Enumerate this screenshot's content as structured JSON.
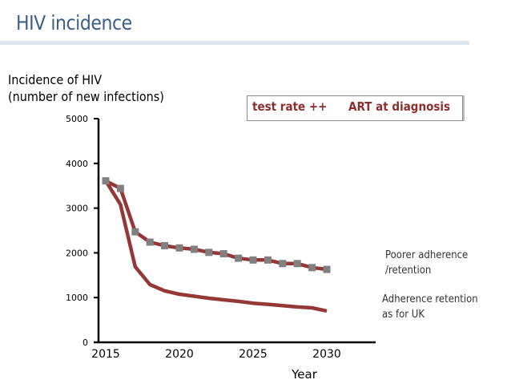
{
  "slide": {
    "title": "HIV incidence"
  },
  "legend": {
    "left_text": "test rate ++",
    "right_text": "ART at diagnosis"
  },
  "annotations": {
    "poorer_line1": "Poorer adherence",
    "poorer_line2": "/retention",
    "uk_line1": "Adherence retention",
    "uk_line2": "as for UK"
  },
  "colors": {
    "title": "#3b5f86",
    "line": "#953735",
    "marker": "#808080",
    "rule": "#dce6f2"
  },
  "chart_data": {
    "type": "line",
    "title": "HIV incidence",
    "ylabel_line1": "Incidence of HIV",
    "ylabel_line2": "(number of new infections)",
    "xlabel": "Year",
    "ylim": [
      0,
      5000
    ],
    "xlim": [
      2014.5,
      2034
    ],
    "yticks": [
      0,
      1000,
      2000,
      3000,
      4000,
      5000
    ],
    "xticks": [
      2015,
      2020,
      2025,
      2030
    ],
    "grid": false,
    "x": [
      2015,
      2016,
      2017,
      2018,
      2019,
      2020,
      2021,
      2022,
      2023,
      2024,
      2025,
      2026,
      2027,
      2028,
      2029,
      2030
    ],
    "series": [
      {
        "name": "Poorer adherence /retention",
        "markers": true,
        "values": [
          3610,
          3440,
          2470,
          2240,
          2160,
          2110,
          2080,
          2010,
          1980,
          1880,
          1840,
          1840,
          1760,
          1760,
          1670,
          1630
        ]
      },
      {
        "name": "Adherence retention as for UK",
        "markers": false,
        "values": [
          3610,
          3080,
          1690,
          1290,
          1150,
          1075,
          1030,
          985,
          950,
          915,
          875,
          850,
          820,
          790,
          770,
          700
        ]
      }
    ]
  }
}
